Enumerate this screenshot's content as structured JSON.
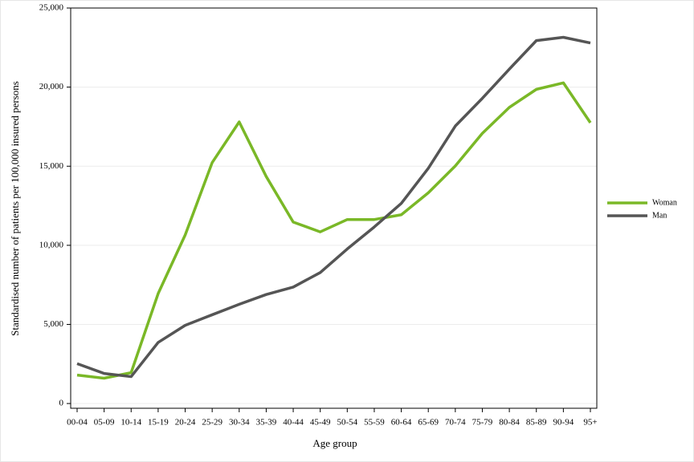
{
  "chart_data": {
    "type": "line",
    "x_label": "Age group",
    "y_label": "Standardised number of patients per 100,000 insured persons",
    "categories": [
      "00-04",
      "05-09",
      "10-14",
      "15-19",
      "20-24",
      "25-29",
      "30-34",
      "35-39",
      "40-44",
      "45-49",
      "50-54",
      "55-59",
      "60-64",
      "65-69",
      "70-74",
      "75-79",
      "80-84",
      "85-89",
      "90-94",
      "95+"
    ],
    "series": [
      {
        "name": "Woman",
        "color": "#7ab827",
        "values": [
          1800,
          1600,
          1950,
          6950,
          10650,
          15230,
          17800,
          14350,
          11470,
          10850,
          11630,
          11630,
          11930,
          13320,
          15020,
          17080,
          18720,
          19860,
          20270,
          17750
        ]
      },
      {
        "name": "Man",
        "color": "#555555",
        "values": [
          2520,
          1900,
          1700,
          3860,
          4940,
          5610,
          6270,
          6890,
          7360,
          8280,
          9770,
          11160,
          12650,
          14870,
          17540,
          19290,
          21140,
          22940,
          23150,
          22790
        ]
      }
    ],
    "ylim": [
      -300,
      25000
    ],
    "yticks": [
      0,
      {
        "value": 5000,
        "label": "5,000"
      },
      {
        "value": 10000,
        "label": "10,000"
      },
      {
        "value": 15000,
        "label": "15,000"
      },
      {
        "value": 20000,
        "label": "20,000"
      },
      {
        "value": 25000,
        "label": "25,000"
      }
    ],
    "grid": true,
    "legend": "right"
  }
}
